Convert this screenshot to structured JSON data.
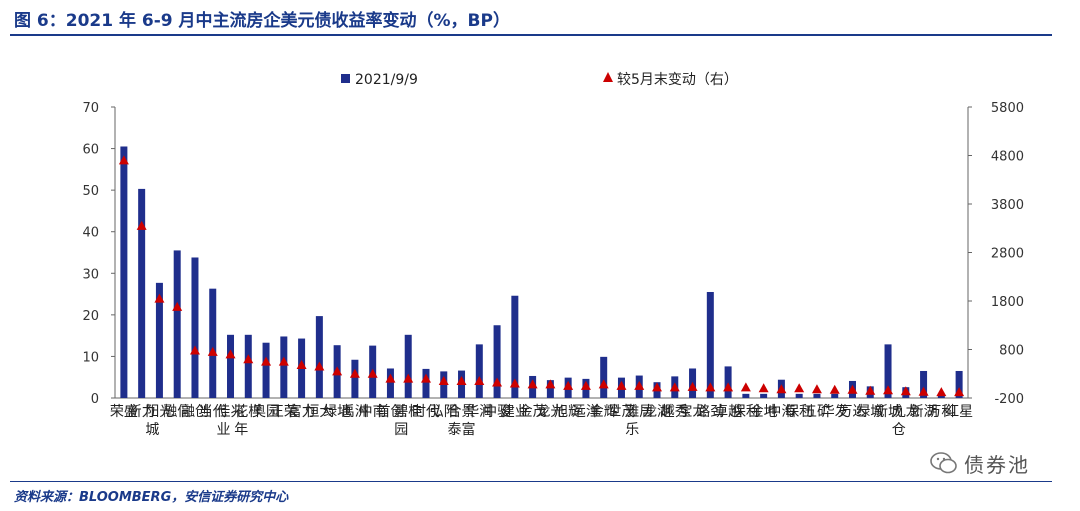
{
  "title": "图 6：2021 年 6-9 月中主流房企美元债收益率变动（%，BP）",
  "source": "资料来源：BLOOMBERG，安信证券研究中心",
  "watermark": {
    "text": "债券池",
    "icon": "wechat-icon"
  },
  "colors": {
    "bar": "#1f2e8c",
    "marker": "#cc0000",
    "title": "#1a3a8a"
  },
  "chart_data": {
    "type": "bar",
    "categories": [
      "荣盛",
      "新力",
      "阳光城",
      "融信",
      "融创",
      "当代",
      "佳兆业",
      "花样年",
      "奥园",
      "正荣",
      "富力",
      "恒大",
      "绿地",
      "禹洲",
      "中南",
      "首创",
      "碧桂园",
      "时代",
      "弘阳",
      "合景泰富",
      "华润",
      "中骏",
      "建业",
      "金茂",
      "龙光",
      "旭辉",
      "远洋",
      "金辉",
      "世茂",
      "雅居乐",
      "龙湖",
      "越秀",
      "宝龙",
      "路劲",
      "卓越",
      "保利",
      "金地",
      "中海",
      "保利",
      "五矿",
      "华发",
      "万达",
      "绿城",
      "新城",
      "九龙仓",
      "新湖",
      "万科",
      "红星"
    ],
    "series": [
      {
        "name": "2021/9/9",
        "type": "bar",
        "axis": "left",
        "values": [
          60.5,
          50.3,
          27.7,
          35.5,
          33.8,
          26.3,
          15.2,
          15.2,
          13.3,
          14.8,
          14.3,
          19.7,
          12.7,
          9.2,
          12.6,
          7.1,
          15.2,
          7.0,
          6.4,
          6.6,
          12.9,
          17.5,
          24.6,
          5.3,
          4.3,
          4.9,
          4.6,
          9.9,
          4.9,
          5.4,
          3.8,
          5.2,
          7.1,
          25.5,
          7.6,
          1.0,
          1.0,
          4.4,
          1.0,
          1.0,
          1.0,
          4.1,
          2.8,
          12.9,
          2.6,
          6.5,
          1.0,
          6.5
        ]
      },
      {
        "name": "较5月末变动（右）",
        "type": "marker",
        "axis": "right",
        "values": [
          4700,
          3350,
          1850,
          1680,
          780,
          750,
          700,
          600,
          550,
          550,
          480,
          450,
          350,
          300,
          300,
          200,
          200,
          200,
          150,
          150,
          150,
          120,
          100,
          80,
          80,
          50,
          50,
          80,
          50,
          50,
          20,
          20,
          30,
          20,
          20,
          20,
          0,
          -20,
          0,
          -20,
          -30,
          -30,
          -50,
          -40,
          -60,
          -70,
          -80,
          -80
        ]
      }
    ],
    "left_axis": {
      "ylim": [
        0,
        70
      ],
      "ticks": [
        "0",
        "10",
        "20",
        "30",
        "40",
        "50",
        "60",
        "70"
      ]
    },
    "right_axis": {
      "ylim": [
        -200,
        5800
      ],
      "ticks": [
        "-200",
        "800",
        "1800",
        "2800",
        "3800",
        "4800",
        "5800"
      ]
    },
    "legend": {
      "placement": "top-center"
    },
    "grid": false
  }
}
